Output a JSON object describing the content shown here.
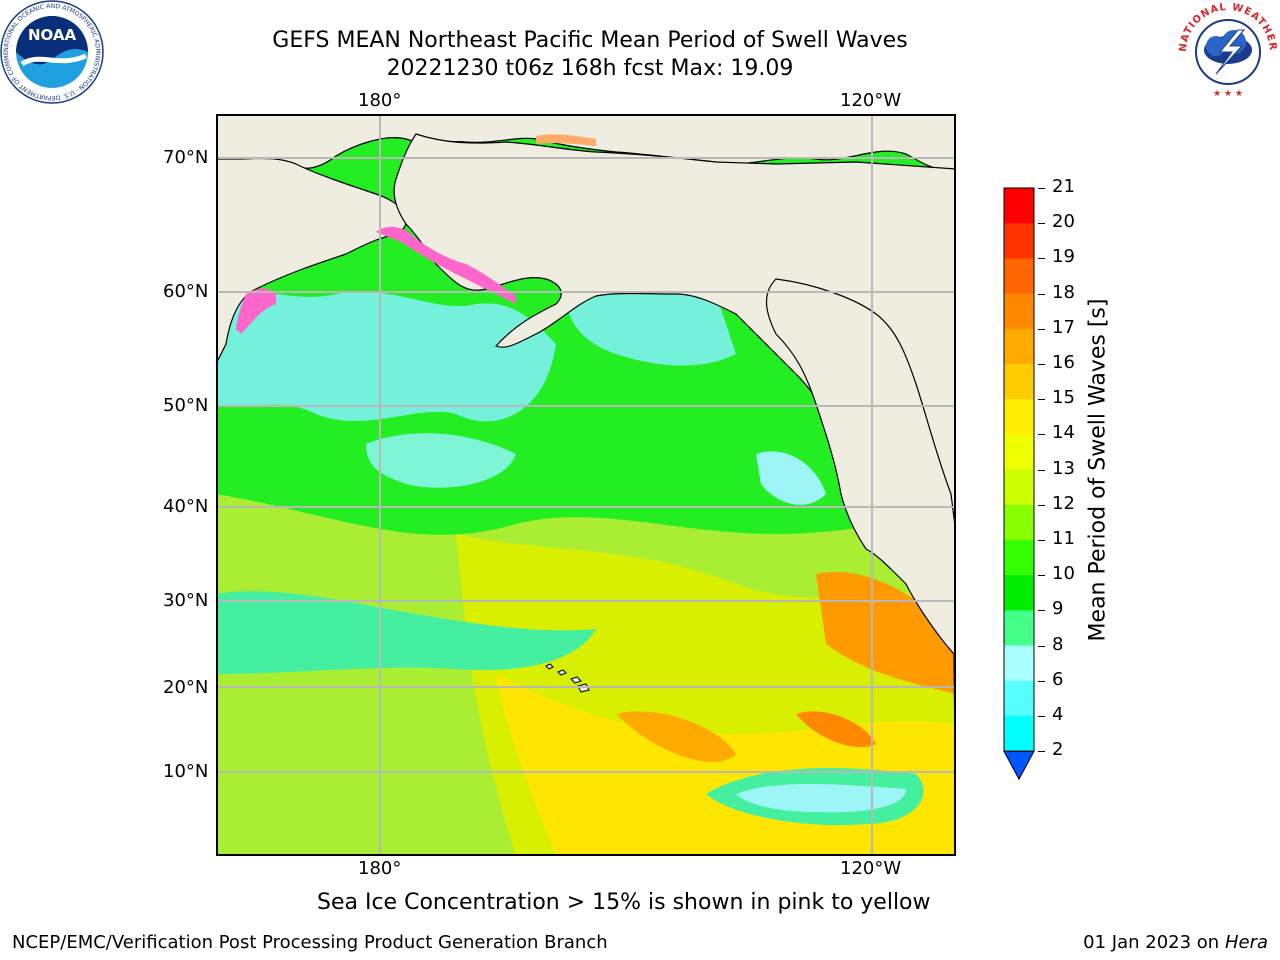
{
  "header": {
    "title_line1": "GEFS MEAN Northeast Pacific Mean Period of Swell Waves",
    "title_line2": "20221230 t06z 168h fcst   Max: 19.09"
  },
  "map": {
    "top_lon_labels": [
      "180°",
      "120°W"
    ],
    "bottom_lon_labels": [
      "180°",
      "120°W"
    ],
    "lat_labels": [
      "70°N",
      "60°N",
      "50°N",
      "40°N",
      "30°N",
      "20°N",
      "10°N"
    ]
  },
  "colorbar": {
    "label": "Mean Period of Swell Waves [s]",
    "ticks": [
      "21",
      "20",
      "19",
      "18",
      "17",
      "16",
      "15",
      "14",
      "13",
      "12",
      "11",
      "10",
      "9",
      "8",
      "6",
      "4",
      "2"
    ],
    "colors": [
      "#ff0000",
      "#ff3300",
      "#ff6600",
      "#ff8800",
      "#ffaa00",
      "#ffcc00",
      "#ffee00",
      "#eeff00",
      "#ccff00",
      "#88ff00",
      "#33ff00",
      "#00ee00",
      "#44ff88",
      "#aaffff",
      "#55ffff",
      "#00ffff",
      "#00aaff",
      "#0055ff"
    ]
  },
  "note": "Sea Ice Concentration > 15% is shown in pink to yellow",
  "footer": {
    "left": "NCEP/EMC/Verification Post Processing Product Generation Branch",
    "right_date": "01 Jan 2023 on ",
    "right_machine": "Hera"
  },
  "logos": {
    "noaa_text": "NOAA",
    "noaa_ring_text": "NATIONAL OCEANIC AND ATMOSPHERIC ADMINISTRATION · U.S. DEPARTMENT OF COMMERCE",
    "nws_ring_text": "NATIONAL WEATHER SERVICE"
  },
  "colors": {
    "land": "#eeeddf",
    "grid": "#b8b8b8"
  }
}
